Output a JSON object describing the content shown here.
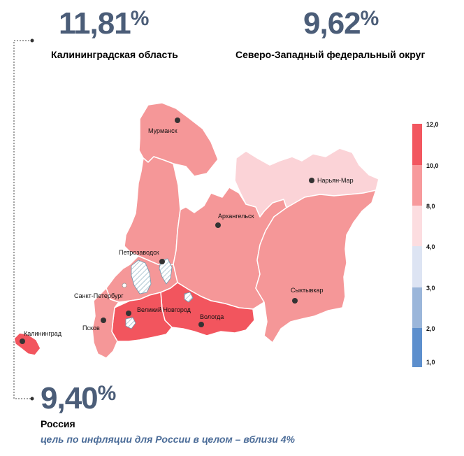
{
  "stats": {
    "kaliningrad": {
      "value": "11,81",
      "unit": "%",
      "label": "Калининградская область"
    },
    "nwfd": {
      "value": "9,62",
      "unit": "%",
      "label": "Северо-Западный федеральный округ"
    },
    "russia": {
      "value": "9,40",
      "unit": "%",
      "label": "Россия",
      "note": "цель по инфляции для России в целом – вблизи 4%"
    }
  },
  "map": {
    "cities": [
      {
        "name": "Мурманск"
      },
      {
        "name": "Нарьян-Мар"
      },
      {
        "name": "Архангельск"
      },
      {
        "name": "Петрозаводск"
      },
      {
        "name": "Сыктывкар"
      },
      {
        "name": "Санкт-Петербург"
      },
      {
        "name": "Великий Новгород"
      },
      {
        "name": "Псков"
      },
      {
        "name": "Вологда"
      },
      {
        "name": "Калининград"
      }
    ],
    "legend": {
      "ticks": [
        "12,0",
        "10,0",
        "8,0",
        "4,0",
        "3,0",
        "2,0",
        "1,0"
      ],
      "colors": [
        "#f25760",
        "#f79a9c",
        "#fcdde0",
        "#dde4f3",
        "#9bb6da",
        "#5d8fcd"
      ]
    },
    "region_colors": {
      "high": "#f2555e",
      "mid": "#f59798",
      "low": "#fbd3d7",
      "lake": "#c9dde6"
    }
  }
}
